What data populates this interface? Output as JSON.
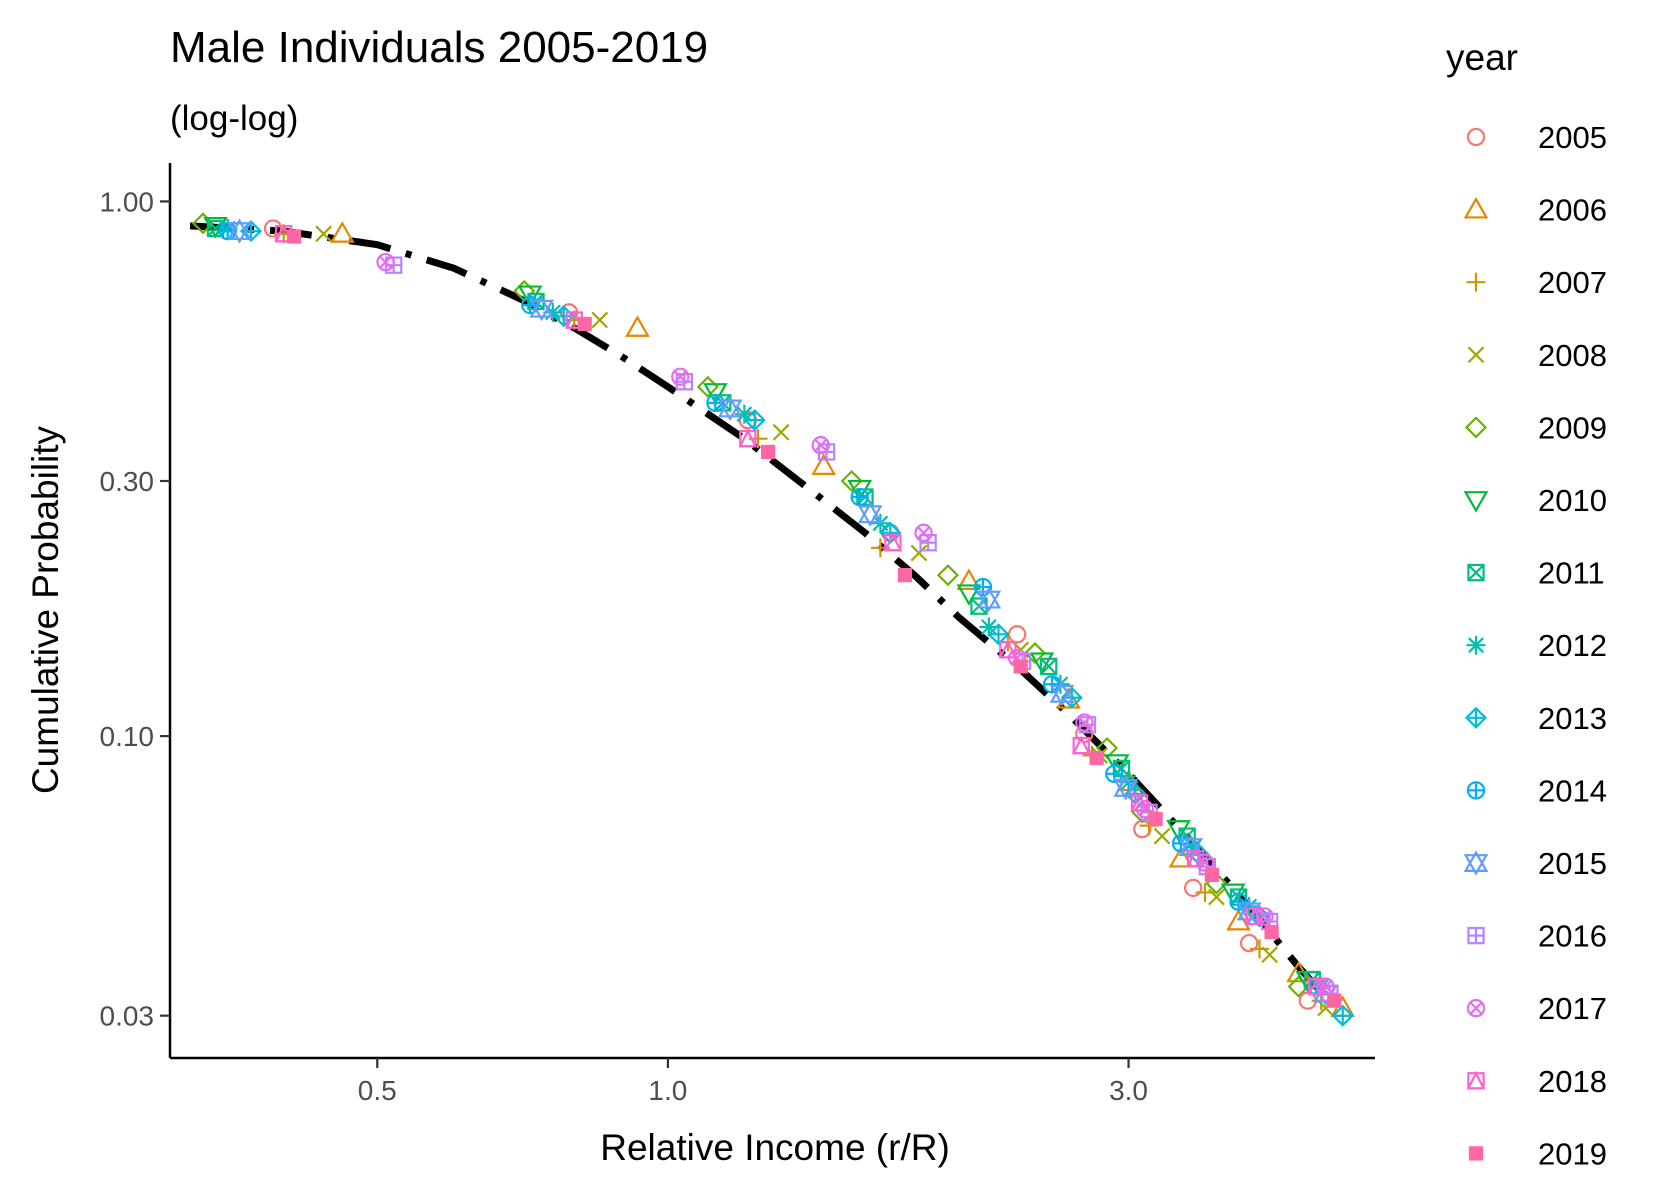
{
  "chart_data": {
    "type": "scatter",
    "title": "Male Individuals 2005-2019",
    "subtitle": "(log-log)",
    "xlabel": "Relative Income (r/R)",
    "ylabel": "Cumulative Probability",
    "x_scale": "log",
    "y_scale": "log",
    "xlim": [
      0.305,
      5.4
    ],
    "ylim": [
      0.025,
      1.18
    ],
    "x_ticks": [
      0.5,
      1.0,
      3.0
    ],
    "x_tick_labels": [
      "0.5",
      "1.0",
      "3.0"
    ],
    "y_ticks": [
      1.0,
      0.3,
      0.1,
      0.03
    ],
    "y_tick_labels": [
      "1.00",
      "0.30",
      "0.10",
      "0.03"
    ],
    "grid": false,
    "legend": {
      "title": "year",
      "placement": "right",
      "entries": [
        {
          "label": "2005",
          "color": "#F8766D",
          "shape": "circle-open"
        },
        {
          "label": "2006",
          "color": "#E58700",
          "shape": "triangle-up-open"
        },
        {
          "label": "2007",
          "color": "#C99800",
          "shape": "plus"
        },
        {
          "label": "2008",
          "color": "#A3A500",
          "shape": "cross"
        },
        {
          "label": "2009",
          "color": "#6BB100",
          "shape": "diamond-open"
        },
        {
          "label": "2010",
          "color": "#00BA38",
          "shape": "triangle-down-open"
        },
        {
          "label": "2011",
          "color": "#00BF7D",
          "shape": "square-cross"
        },
        {
          "label": "2012",
          "color": "#00C0AF",
          "shape": "asterisk"
        },
        {
          "label": "2013",
          "color": "#00BCD8",
          "shape": "diamond-plus"
        },
        {
          "label": "2014",
          "color": "#00B0F6",
          "shape": "circle-plus"
        },
        {
          "label": "2015",
          "color": "#619CFF",
          "shape": "triangles-up-down"
        },
        {
          "label": "2016",
          "color": "#B983FF",
          "shape": "square-plus"
        },
        {
          "label": "2017",
          "color": "#E76BF3",
          "shape": "circle-cross"
        },
        {
          "label": "2018",
          "color": "#FD61D1",
          "shape": "square-triangle"
        },
        {
          "label": "2019",
          "color": "#FF67A4",
          "shape": "square-filled"
        }
      ]
    },
    "fit_line": {
      "style": "dash-dot",
      "color": "#000000",
      "points": [
        [
          0.32,
          0.9
        ],
        [
          0.4,
          0.88
        ],
        [
          0.5,
          0.83
        ],
        [
          0.6,
          0.75
        ],
        [
          0.7,
          0.66
        ],
        [
          0.8,
          0.58
        ],
        [
          0.9,
          0.51
        ],
        [
          1.0,
          0.45
        ],
        [
          1.2,
          0.36
        ],
        [
          1.4,
          0.29
        ],
        [
          1.6,
          0.24
        ],
        [
          1.8,
          0.2
        ],
        [
          2.0,
          0.167
        ],
        [
          2.3,
          0.135
        ],
        [
          2.6,
          0.11
        ],
        [
          3.0,
          0.085
        ],
        [
          3.5,
          0.063
        ],
        [
          4.0,
          0.048
        ],
        [
          4.5,
          0.037
        ],
        [
          5.0,
          0.03
        ]
      ]
    },
    "series": [
      {
        "name": "2005",
        "points": [
          [
            0.39,
            0.89
          ],
          [
            0.79,
            0.62
          ],
          [
            1.21,
            0.39
          ],
          [
            1.7,
            0.24
          ],
          [
            2.3,
            0.155
          ],
          [
            2.7,
            0.101
          ],
          [
            3.1,
            0.067
          ],
          [
            3.5,
            0.052
          ],
          [
            4.0,
            0.041
          ],
          [
            4.6,
            0.032
          ]
        ]
      },
      {
        "name": "2006",
        "points": [
          [
            0.46,
            0.87
          ],
          [
            0.93,
            0.58
          ],
          [
            1.45,
            0.32
          ],
          [
            2.05,
            0.195
          ],
          [
            2.6,
            0.117
          ],
          [
            3.0,
            0.082
          ],
          [
            3.4,
            0.059
          ],
          [
            3.9,
            0.045
          ],
          [
            4.5,
            0.036
          ],
          [
            5.0,
            0.031
          ]
        ]
      },
      {
        "name": "2007",
        "points": [
          [
            0.4,
            0.87
          ],
          [
            0.8,
            0.6
          ],
          [
            1.24,
            0.36
          ],
          [
            1.66,
            0.225
          ],
          [
            2.25,
            0.15
          ],
          [
            2.75,
            0.092
          ],
          [
            3.15,
            0.068
          ],
          [
            3.6,
            0.051
          ],
          [
            4.1,
            0.04
          ],
          [
            4.75,
            0.032
          ]
        ]
      },
      {
        "name": "2008",
        "points": [
          [
            0.44,
            0.87
          ],
          [
            0.85,
            0.6
          ],
          [
            1.31,
            0.37
          ],
          [
            1.82,
            0.22
          ],
          [
            2.32,
            0.145
          ],
          [
            2.8,
            0.092
          ],
          [
            3.25,
            0.065
          ],
          [
            3.7,
            0.05
          ],
          [
            4.2,
            0.039
          ],
          [
            4.8,
            0.031
          ]
        ]
      },
      {
        "name": "2009",
        "points": [
          [
            0.33,
            0.91
          ],
          [
            0.71,
            0.68
          ],
          [
            1.1,
            0.45
          ],
          [
            1.55,
            0.3
          ],
          [
            1.95,
            0.2
          ],
          [
            2.4,
            0.143
          ],
          [
            2.85,
            0.095
          ],
          [
            3.1,
            0.072
          ],
          [
            3.7,
            0.053
          ],
          [
            4.5,
            0.034
          ]
        ]
      },
      {
        "name": "2010",
        "points": [
          [
            0.34,
            0.9
          ],
          [
            0.72,
            0.67
          ],
          [
            1.12,
            0.44
          ],
          [
            1.58,
            0.29
          ],
          [
            2.05,
            0.185
          ],
          [
            2.44,
            0.138
          ],
          [
            2.92,
            0.089
          ],
          [
            3.38,
            0.067
          ],
          [
            3.85,
            0.051
          ],
          [
            4.6,
            0.035
          ]
        ]
      },
      {
        "name": "2011",
        "points": [
          [
            0.34,
            0.89
          ],
          [
            0.73,
            0.65
          ],
          [
            1.14,
            0.42
          ],
          [
            1.6,
            0.28
          ],
          [
            2.1,
            0.175
          ],
          [
            2.48,
            0.135
          ],
          [
            2.95,
            0.087
          ],
          [
            3.45,
            0.065
          ],
          [
            3.9,
            0.05
          ],
          [
            4.65,
            0.035
          ]
        ]
      },
      {
        "name": "2012",
        "points": [
          [
            0.35,
            0.89
          ],
          [
            0.76,
            0.62
          ],
          [
            1.2,
            0.4
          ],
          [
            1.66,
            0.25
          ],
          [
            2.15,
            0.16
          ],
          [
            2.55,
            0.125
          ],
          [
            3.0,
            0.082
          ],
          [
            3.5,
            0.062
          ],
          [
            4.0,
            0.048
          ],
          [
            4.75,
            0.034
          ]
        ]
      },
      {
        "name": "2013",
        "points": [
          [
            0.37,
            0.88
          ],
          [
            0.78,
            0.61
          ],
          [
            1.23,
            0.39
          ],
          [
            1.7,
            0.24
          ],
          [
            2.2,
            0.155
          ],
          [
            2.62,
            0.118
          ],
          [
            3.05,
            0.078
          ],
          [
            3.55,
            0.06
          ],
          [
            4.1,
            0.046
          ],
          [
            5.0,
            0.03
          ]
        ]
      },
      {
        "name": "2014",
        "points": [
          [
            0.35,
            0.88
          ],
          [
            0.72,
            0.64
          ],
          [
            1.12,
            0.42
          ],
          [
            1.58,
            0.28
          ],
          [
            2.12,
            0.19
          ],
          [
            2.5,
            0.125
          ],
          [
            2.9,
            0.085
          ],
          [
            3.4,
            0.063
          ],
          [
            3.9,
            0.049
          ],
          [
            4.7,
            0.034
          ]
        ]
      },
      {
        "name": "2015",
        "points": [
          [
            0.36,
            0.88
          ],
          [
            0.74,
            0.63
          ],
          [
            1.16,
            0.41
          ],
          [
            1.62,
            0.26
          ],
          [
            2.15,
            0.18
          ],
          [
            2.56,
            0.12
          ],
          [
            2.98,
            0.08
          ],
          [
            3.48,
            0.062
          ],
          [
            4.0,
            0.047
          ],
          [
            4.8,
            0.033
          ]
        ]
      },
      {
        "name": "2016",
        "points": [
          [
            0.52,
            0.76
          ],
          [
            1.04,
            0.46
          ],
          [
            1.46,
            0.34
          ],
          [
            1.86,
            0.23
          ],
          [
            2.33,
            0.138
          ],
          [
            2.72,
            0.105
          ],
          [
            3.15,
            0.072
          ],
          [
            3.62,
            0.057
          ],
          [
            4.2,
            0.045
          ],
          [
            4.85,
            0.033
          ]
        ]
      },
      {
        "name": "2017",
        "points": [
          [
            0.51,
            0.77
          ],
          [
            1.03,
            0.47
          ],
          [
            1.44,
            0.35
          ],
          [
            1.84,
            0.24
          ],
          [
            2.3,
            0.14
          ],
          [
            2.7,
            0.106
          ],
          [
            3.12,
            0.073
          ],
          [
            3.6,
            0.058
          ],
          [
            4.15,
            0.046
          ],
          [
            4.8,
            0.034
          ]
        ]
      },
      {
        "name": "2018",
        "points": [
          [
            0.4,
            0.87
          ],
          [
            0.8,
            0.6
          ],
          [
            1.21,
            0.36
          ],
          [
            1.71,
            0.23
          ],
          [
            2.25,
            0.145
          ],
          [
            2.68,
            0.096
          ],
          [
            3.08,
            0.075
          ],
          [
            3.52,
            0.059
          ],
          [
            4.05,
            0.046
          ],
          [
            4.7,
            0.034
          ]
        ]
      },
      {
        "name": "2019",
        "points": [
          [
            0.41,
            0.86
          ],
          [
            0.82,
            0.59
          ],
          [
            1.27,
            0.34
          ],
          [
            1.76,
            0.2
          ],
          [
            2.32,
            0.135
          ],
          [
            2.78,
            0.091
          ],
          [
            3.2,
            0.07
          ],
          [
            3.66,
            0.055
          ],
          [
            4.22,
            0.043
          ],
          [
            4.9,
            0.032
          ]
        ]
      }
    ]
  }
}
